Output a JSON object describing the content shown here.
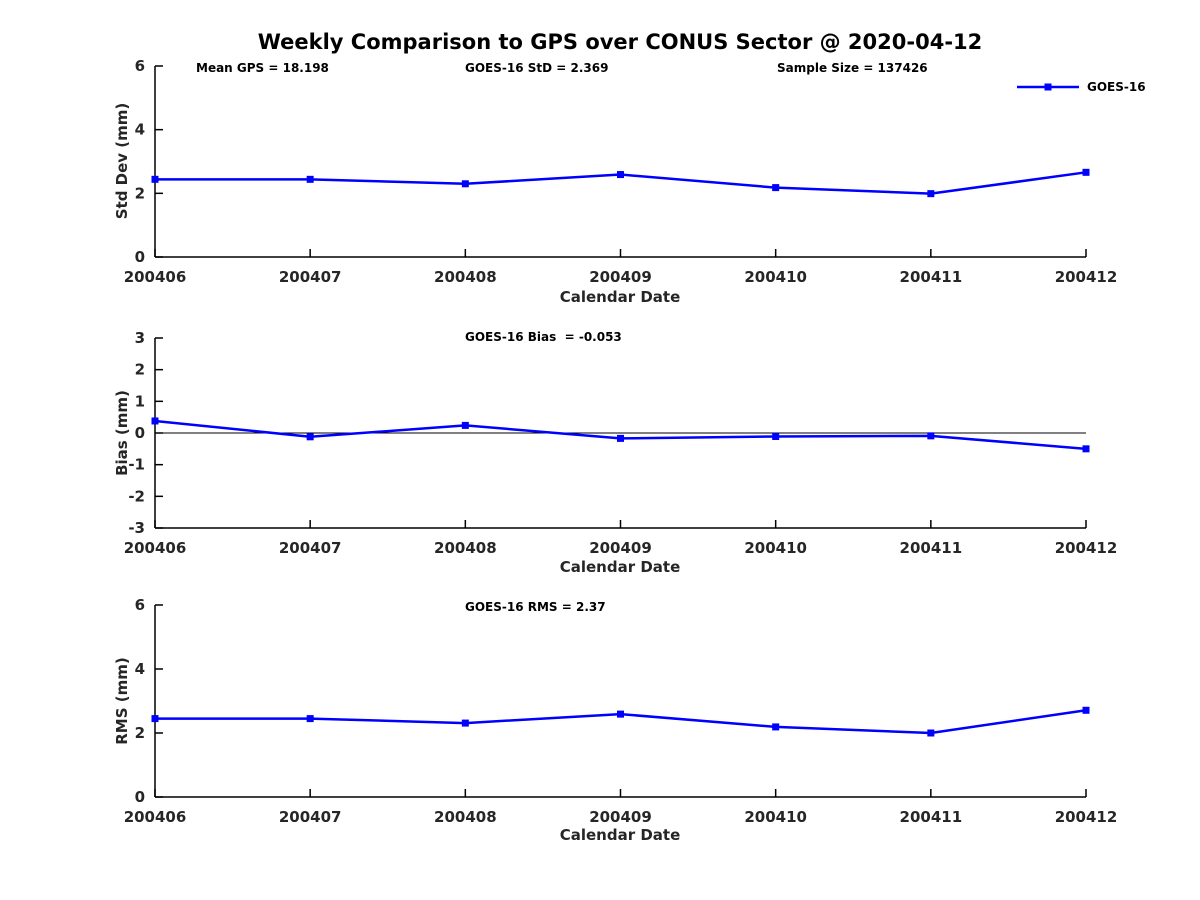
{
  "title": "Weekly Comparison to GPS over CONUS Sector @ 2020-04-12",
  "legend": {
    "label": "GOES-16",
    "color": "#0000FF"
  },
  "chart_data": [
    {
      "type": "line",
      "title": "",
      "categories": [
        "200406",
        "200407",
        "200408",
        "200409",
        "200410",
        "200411",
        "200412"
      ],
      "series": [
        {
          "name": "GOES-16",
          "values": [
            2.44,
            2.44,
            2.3,
            2.59,
            2.18,
            1.99,
            2.66
          ]
        }
      ],
      "xlabel": "Calendar Date",
      "ylabel": "Std Dev (mm)",
      "ylim": [
        0,
        6
      ],
      "yticks": [
        0,
        2,
        4,
        6
      ],
      "grid": false,
      "zero_line": false,
      "legend_position": "top-right-outside",
      "annotations": [
        "Mean GPS = 18.198",
        "GOES-16 StD = 2.369",
        "Sample Size = 137426"
      ],
      "line_color": "#0000FF"
    },
    {
      "type": "line",
      "title": "",
      "categories": [
        "200406",
        "200407",
        "200408",
        "200409",
        "200410",
        "200411",
        "200412"
      ],
      "series": [
        {
          "name": "GOES-16",
          "values": [
            0.38,
            -0.12,
            0.24,
            -0.17,
            -0.11,
            -0.09,
            -0.5
          ]
        }
      ],
      "xlabel": "Calendar Date",
      "ylabel": "Bias (mm)",
      "ylim": [
        -3,
        3
      ],
      "yticks": [
        3,
        2,
        1,
        0,
        -1,
        -2,
        -3
      ],
      "grid": false,
      "zero_line": true,
      "annotations": [
        "GOES-16 Bias  = -0.053"
      ],
      "line_color": "#0000FF"
    },
    {
      "type": "line",
      "title": "",
      "categories": [
        "200406",
        "200407",
        "200408",
        "200409",
        "200410",
        "200411",
        "200412"
      ],
      "series": [
        {
          "name": "GOES-16",
          "values": [
            2.45,
            2.45,
            2.31,
            2.59,
            2.19,
            2.0,
            2.71
          ]
        }
      ],
      "xlabel": "Calendar Date",
      "ylabel": "RMS (mm)",
      "ylim": [
        0,
        6
      ],
      "yticks": [
        0,
        2,
        4,
        6
      ],
      "grid": false,
      "zero_line": false,
      "annotations": [
        "GOES-16 RMS = 2.37"
      ],
      "line_color": "#0000FF"
    }
  ]
}
